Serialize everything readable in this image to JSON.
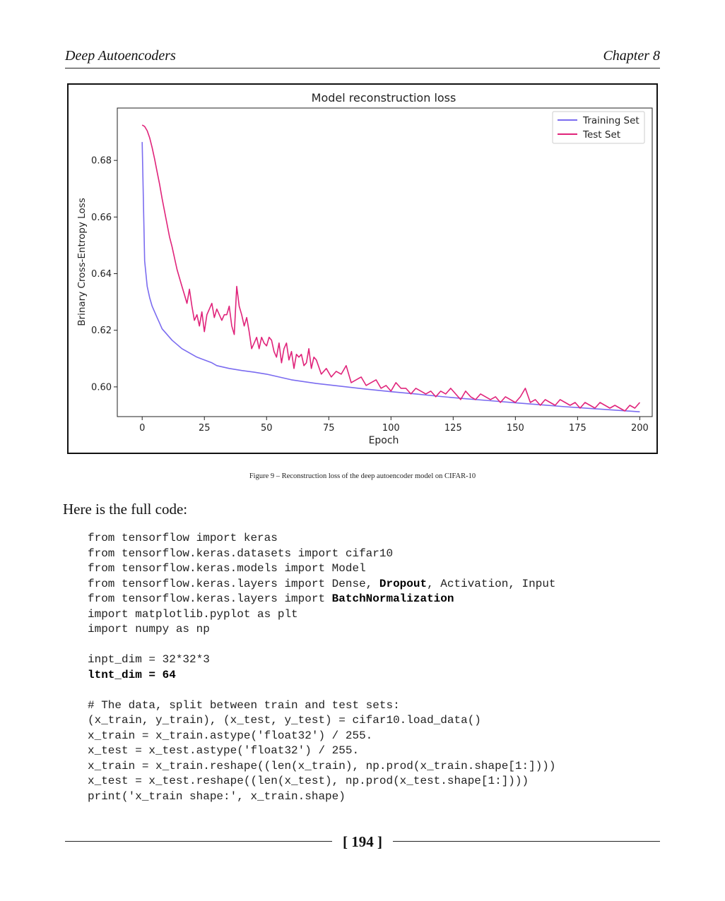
{
  "header": {
    "left": "Deep Autoencoders",
    "right": "Chapter 8"
  },
  "chart_data": {
    "type": "line",
    "title": "Model reconstruction loss",
    "xlabel": "Epoch",
    "ylabel": "Brinary Cross-Entropy Loss",
    "xlim": [
      -10,
      205
    ],
    "ylim": [
      0.5895,
      0.6985
    ],
    "xticks": [
      0,
      25,
      50,
      75,
      100,
      125,
      150,
      175,
      200
    ],
    "yticks": [
      0.6,
      0.62,
      0.64,
      0.66,
      0.68
    ],
    "xtick_labels": [
      "0",
      "25",
      "50",
      "75",
      "100",
      "125",
      "150",
      "175",
      "200"
    ],
    "ytick_labels": [
      "0.60",
      "0.62",
      "0.64",
      "0.66",
      "0.68"
    ],
    "grid": false,
    "legend_position": "top-right",
    "series": [
      {
        "name": "Training Set",
        "color": "#7b6cf0",
        "x": [
          0,
          1,
          2,
          3,
          4,
          5,
          6,
          7,
          8,
          10,
          12,
          14,
          16,
          18,
          20,
          22,
          25,
          28,
          30,
          35,
          40,
          45,
          50,
          55,
          60,
          70,
          80,
          90,
          100,
          110,
          120,
          130,
          140,
          150,
          160,
          170,
          180,
          190,
          200
        ],
        "y": [
          0.6865,
          0.6445,
          0.6355,
          0.6315,
          0.6285,
          0.6265,
          0.6245,
          0.6225,
          0.6205,
          0.6185,
          0.6165,
          0.615,
          0.6135,
          0.6125,
          0.6115,
          0.6105,
          0.6095,
          0.6085,
          0.6075,
          0.6065,
          0.6058,
          0.6052,
          0.6045,
          0.6035,
          0.6025,
          0.6012,
          0.6002,
          0.5992,
          0.5983,
          0.5975,
          0.5966,
          0.5958,
          0.5951,
          0.5944,
          0.5937,
          0.593,
          0.5924,
          0.5918,
          0.5912
        ]
      },
      {
        "name": "Test Set",
        "color": "#e0237a",
        "x": [
          0,
          1,
          2,
          3,
          4,
          5,
          6,
          7,
          8,
          9,
          10,
          11,
          12,
          13,
          14,
          15,
          16,
          17,
          18,
          19,
          20,
          21,
          22,
          23,
          24,
          25,
          26,
          27,
          28,
          29,
          30,
          31,
          32,
          33,
          34,
          35,
          36,
          37,
          38,
          39,
          40,
          41,
          42,
          43,
          44,
          45,
          46,
          47,
          48,
          49,
          50,
          51,
          52,
          53,
          54,
          55,
          56,
          57,
          58,
          59,
          60,
          61,
          62,
          63,
          64,
          65,
          66,
          67,
          68,
          69,
          70,
          72,
          74,
          76,
          78,
          80,
          82,
          84,
          86,
          88,
          90,
          92,
          94,
          96,
          98,
          100,
          102,
          104,
          106,
          108,
          110,
          112,
          114,
          116,
          118,
          120,
          122,
          124,
          126,
          128,
          130,
          132,
          134,
          136,
          138,
          140,
          142,
          144,
          146,
          148,
          150,
          152,
          154,
          156,
          158,
          160,
          162,
          164,
          166,
          168,
          170,
          172,
          174,
          176,
          178,
          180,
          182,
          184,
          186,
          188,
          190,
          192,
          194,
          196,
          198,
          200
        ],
        "y": [
          0.6925,
          0.692,
          0.6905,
          0.688,
          0.6845,
          0.6805,
          0.676,
          0.6715,
          0.6665,
          0.662,
          0.6575,
          0.653,
          0.6495,
          0.6455,
          0.6415,
          0.6385,
          0.6355,
          0.6325,
          0.6295,
          0.6345,
          0.6285,
          0.6235,
          0.6255,
          0.6215,
          0.6265,
          0.6195,
          0.6255,
          0.6275,
          0.6295,
          0.6245,
          0.6275,
          0.6255,
          0.6235,
          0.6255,
          0.6255,
          0.6285,
          0.6215,
          0.6185,
          0.6355,
          0.6285,
          0.6255,
          0.6215,
          0.6245,
          0.6195,
          0.6135,
          0.6155,
          0.6175,
          0.6135,
          0.6175,
          0.6155,
          0.6145,
          0.6175,
          0.6165,
          0.6125,
          0.6105,
          0.6155,
          0.6085,
          0.6135,
          0.6155,
          0.6095,
          0.6125,
          0.6065,
          0.6115,
          0.6105,
          0.6115,
          0.6075,
          0.6085,
          0.6135,
          0.6065,
          0.6105,
          0.6095,
          0.6045,
          0.6065,
          0.6035,
          0.6055,
          0.6045,
          0.6075,
          0.6015,
          0.6025,
          0.6035,
          0.6005,
          0.6015,
          0.6025,
          0.5995,
          0.6005,
          0.5985,
          0.6015,
          0.5995,
          0.5995,
          0.5975,
          0.5995,
          0.5985,
          0.5975,
          0.5985,
          0.5965,
          0.5985,
          0.5975,
          0.5995,
          0.5975,
          0.5955,
          0.5985,
          0.5965,
          0.5955,
          0.5975,
          0.5965,
          0.5955,
          0.5965,
          0.5945,
          0.5965,
          0.5955,
          0.5945,
          0.5965,
          0.5995,
          0.5945,
          0.5955,
          0.5935,
          0.5955,
          0.5945,
          0.5935,
          0.5955,
          0.5945,
          0.5935,
          0.5945,
          0.5925,
          0.5945,
          0.5935,
          0.5925,
          0.5945,
          0.5935,
          0.5925,
          0.5935,
          0.5925,
          0.5915,
          0.5935,
          0.5925,
          0.5945
        ]
      }
    ]
  },
  "caption": "Figure 9 – Reconstruction loss of the deep autoencoder model on CIFAR-10",
  "intro": "Here is the full code:",
  "code_lines": [
    "from tensorflow import keras",
    "from tensorflow.keras.datasets import cifar10",
    "from tensorflow.keras.models import Model",
    "from tensorflow.keras.layers import Dense, **Dropout**, Activation, Input",
    "from tensorflow.keras.layers import **BatchNormalization**",
    "import matplotlib.pyplot as plt",
    "import numpy as np",
    "",
    "inpt_dim = 32*32*3",
    "**ltnt_dim = 64**",
    "",
    "# The data, split between train and test sets:",
    "(x_train, y_train), (x_test, y_test) = cifar10.load_data()",
    "x_train = x_train.astype('float32') / 255.",
    "x_test = x_test.astype('float32') / 255.",
    "x_train = x_train.reshape((len(x_train), np.prod(x_train.shape[1:])))",
    "x_test = x_test.reshape((len(x_test), np.prod(x_test.shape[1:])))",
    "print('x_train shape:', x_train.shape)"
  ],
  "page_number": "[ 194 ]"
}
